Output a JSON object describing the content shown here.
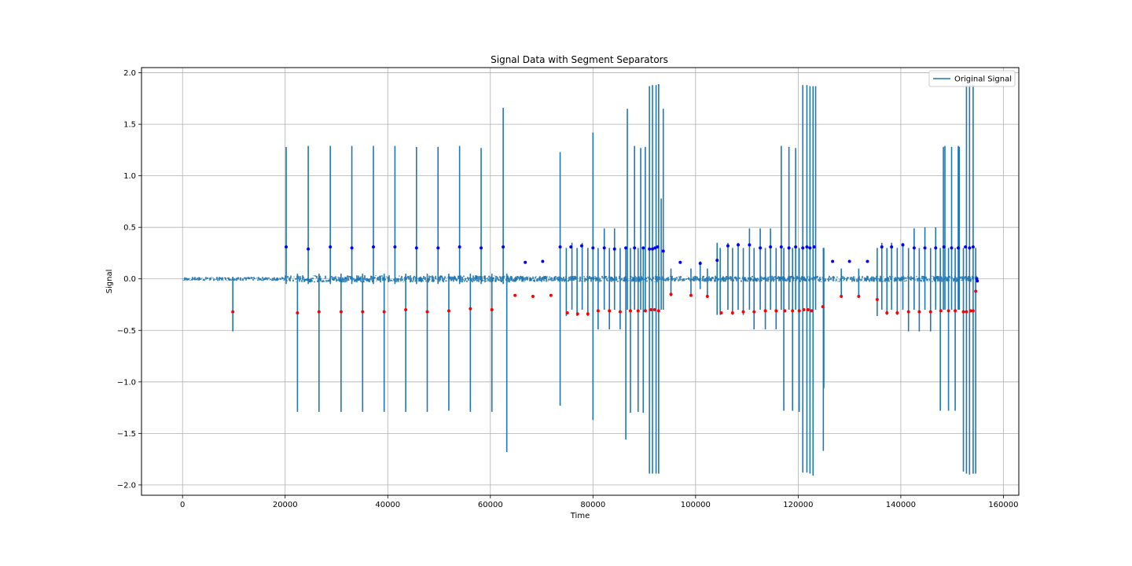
{
  "chart_data": {
    "type": "line",
    "title": "Signal Data with Segment Separators",
    "xlabel": "Time",
    "ylabel": "Signal",
    "xlim": [
      -8000,
      163000
    ],
    "ylim": [
      -2.1,
      2.05
    ],
    "xticks": [
      0,
      20000,
      40000,
      60000,
      80000,
      100000,
      120000,
      140000,
      160000
    ],
    "xtick_labels": [
      "0",
      "20000",
      "40000",
      "60000",
      "80000",
      "100000",
      "120000",
      "140000",
      "160000"
    ],
    "yticks": [
      -2.0,
      -1.5,
      -1.0,
      -0.5,
      0.0,
      0.5,
      1.0,
      1.5,
      2.0
    ],
    "ytick_labels": [
      "−2.0",
      "−1.5",
      "−1.0",
      "−0.5",
      "0.0",
      "0.5",
      "1.0",
      "1.5",
      "2.0"
    ],
    "grid": true,
    "legend_position": "top-right",
    "series": [
      {
        "name": "Original Signal",
        "color": "#1f77b4",
        "baseline": 0.0,
        "spikes": [
          [
            9800,
            0.02,
            -0.51
          ],
          [
            20200,
            1.28,
            -0.05
          ],
          [
            22400,
            0.05,
            -1.29
          ],
          [
            24500,
            1.29,
            -0.05
          ],
          [
            26600,
            0.05,
            -1.29
          ],
          [
            28800,
            1.29,
            -0.05
          ],
          [
            30900,
            0.05,
            -1.29
          ],
          [
            33000,
            1.29,
            -0.05
          ],
          [
            35100,
            0.05,
            -1.29
          ],
          [
            37200,
            1.29,
            -0.05
          ],
          [
            39300,
            0.05,
            -1.29
          ],
          [
            41400,
            1.29,
            -0.05
          ],
          [
            43500,
            0.05,
            -1.29
          ],
          [
            45600,
            1.28,
            -0.05
          ],
          [
            47700,
            0.05,
            -1.29
          ],
          [
            49800,
            1.28,
            -0.05
          ],
          [
            51900,
            0.05,
            -1.28
          ],
          [
            54000,
            1.29,
            -0.05
          ],
          [
            56100,
            0.05,
            -1.29
          ],
          [
            58200,
            1.27,
            -0.05
          ],
          [
            60300,
            0.05,
            -1.29
          ],
          [
            62500,
            1.66,
            -0.05
          ],
          [
            63200,
            0.05,
            -1.68
          ],
          [
            73600,
            1.23,
            -1.23
          ],
          [
            74800,
            0.3,
            -0.36
          ],
          [
            75900,
            0.35,
            -0.3
          ],
          [
            76900,
            0.3,
            -0.36
          ],
          [
            77900,
            0.35,
            -0.3
          ],
          [
            79000,
            0.3,
            -0.36
          ],
          [
            80000,
            1.42,
            -1.37
          ],
          [
            81000,
            0.3,
            -0.49
          ],
          [
            82200,
            0.49,
            -0.3
          ],
          [
            83200,
            0.3,
            -0.49
          ],
          [
            84200,
            0.49,
            -0.3
          ],
          [
            85300,
            0.3,
            -0.49
          ],
          [
            86400,
            0.3,
            -1.56
          ],
          [
            86700,
            1.65,
            -0.3
          ],
          [
            87300,
            0.3,
            -1.3
          ],
          [
            88100,
            1.29,
            -0.3
          ],
          [
            88800,
            0.3,
            -1.29
          ],
          [
            89300,
            1.27,
            -0.3
          ],
          [
            89800,
            0.3,
            -1.3
          ],
          [
            90200,
            1.28,
            -0.3
          ],
          [
            91000,
            1.87,
            -1.89
          ],
          [
            91600,
            1.88,
            -1.89
          ],
          [
            92300,
            1.88,
            -1.89
          ],
          [
            92800,
            1.89,
            -1.89
          ],
          [
            93300,
            0.78,
            -0.3
          ],
          [
            93700,
            1.65,
            -0.3
          ],
          [
            95200,
            0.1,
            -0.17
          ],
          [
            99100,
            0.1,
            -0.17
          ],
          [
            100900,
            0.17,
            -0.1
          ],
          [
            102300,
            0.1,
            -0.17
          ],
          [
            104200,
            0.35,
            -0.35
          ],
          [
            104800,
            0.3,
            -0.35
          ],
          [
            106300,
            0.35,
            -0.3
          ],
          [
            107200,
            0.3,
            -0.35
          ],
          [
            108300,
            0.35,
            -0.3
          ],
          [
            109300,
            0.3,
            -0.35
          ],
          [
            110500,
            0.49,
            -0.3
          ],
          [
            111400,
            0.3,
            -0.49
          ],
          [
            112600,
            0.49,
            -0.3
          ],
          [
            113600,
            0.3,
            -0.49
          ],
          [
            114600,
            0.49,
            -0.3
          ],
          [
            115700,
            0.3,
            -0.49
          ],
          [
            116700,
            1.29,
            -0.3
          ],
          [
            117200,
            0.3,
            -1.28
          ],
          [
            118200,
            1.28,
            -0.3
          ],
          [
            118900,
            0.3,
            -1.28
          ],
          [
            119500,
            1.27,
            -0.3
          ],
          [
            120200,
            0.3,
            -1.29
          ],
          [
            120900,
            1.88,
            -1.88
          ],
          [
            121700,
            1.88,
            -1.88
          ],
          [
            122300,
            1.87,
            -1.89
          ],
          [
            122900,
            1.87,
            -1.91
          ],
          [
            123400,
            1.87,
            -0.3
          ],
          [
            124900,
            0.3,
            -1.67
          ],
          [
            125000,
            0.3,
            -1.06
          ],
          [
            128400,
            0.1,
            -0.17
          ],
          [
            131800,
            0.1,
            -0.17
          ],
          [
            135400,
            0.3,
            -0.36
          ],
          [
            136300,
            0.35,
            -0.3
          ],
          [
            137300,
            0.3,
            -0.35
          ],
          [
            138200,
            0.35,
            -0.3
          ],
          [
            139300,
            0.3,
            -0.35
          ],
          [
            140400,
            0.35,
            -0.3
          ],
          [
            141500,
            0.3,
            -0.51
          ],
          [
            142600,
            0.49,
            -0.3
          ],
          [
            143600,
            0.3,
            -0.51
          ],
          [
            144700,
            0.5,
            -0.3
          ],
          [
            145800,
            0.3,
            -0.51
          ],
          [
            146800,
            0.5,
            -0.3
          ],
          [
            147700,
            0.3,
            -1.28
          ],
          [
            148300,
            1.28,
            -0.3
          ],
          [
            148600,
            1.29,
            -0.3
          ],
          [
            149300,
            0.3,
            -1.28
          ],
          [
            149900,
            1.28,
            -0.3
          ],
          [
            150600,
            0.3,
            -1.28
          ],
          [
            151200,
            1.29,
            -0.3
          ],
          [
            151400,
            1.28,
            -0.3
          ],
          [
            152200,
            0.3,
            -1.87
          ],
          [
            152800,
            1.88,
            -1.89
          ],
          [
            153400,
            1.88,
            -1.9
          ],
          [
            154100,
            1.88,
            -1.89
          ],
          [
            154600,
            0.3,
            -1.89
          ]
        ]
      },
      {
        "name": "",
        "color": "#0000ff",
        "marker": "dot",
        "points": [
          [
            20200,
            0.31
          ],
          [
            24500,
            0.29
          ],
          [
            28800,
            0.31
          ],
          [
            33000,
            0.3
          ],
          [
            37200,
            0.31
          ],
          [
            41400,
            0.31
          ],
          [
            45600,
            0.3
          ],
          [
            49800,
            0.3
          ],
          [
            54000,
            0.31
          ],
          [
            58200,
            0.3
          ],
          [
            62500,
            0.31
          ],
          [
            66800,
            0.16
          ],
          [
            70200,
            0.17
          ],
          [
            73600,
            0.31
          ],
          [
            75700,
            0.31
          ],
          [
            77800,
            0.32
          ],
          [
            80000,
            0.3
          ],
          [
            82200,
            0.3
          ],
          [
            84200,
            0.29
          ],
          [
            86400,
            0.3
          ],
          [
            88100,
            0.3
          ],
          [
            89800,
            0.3
          ],
          [
            91000,
            0.29
          ],
          [
            91600,
            0.29
          ],
          [
            92100,
            0.3
          ],
          [
            92600,
            0.31
          ],
          [
            93700,
            0.27
          ],
          [
            97000,
            0.16
          ],
          [
            100900,
            0.15
          ],
          [
            104200,
            0.18
          ],
          [
            106300,
            0.32
          ],
          [
            108300,
            0.33
          ],
          [
            110500,
            0.33
          ],
          [
            112600,
            0.3
          ],
          [
            114600,
            0.31
          ],
          [
            116700,
            0.31
          ],
          [
            118200,
            0.3
          ],
          [
            119500,
            0.31
          ],
          [
            120900,
            0.3
          ],
          [
            121700,
            0.31
          ],
          [
            122300,
            0.3
          ],
          [
            123100,
            0.31
          ],
          [
            126700,
            0.17
          ],
          [
            130000,
            0.17
          ],
          [
            133500,
            0.17
          ],
          [
            136300,
            0.31
          ],
          [
            138200,
            0.31
          ],
          [
            140400,
            0.33
          ],
          [
            142600,
            0.3
          ],
          [
            144700,
            0.3
          ],
          [
            146800,
            0.3
          ],
          [
            148400,
            0.31
          ],
          [
            149900,
            0.3
          ],
          [
            151200,
            0.3
          ],
          [
            152600,
            0.31
          ],
          [
            153400,
            0.3
          ],
          [
            154100,
            0.31
          ],
          [
            154800,
            0.0
          ],
          [
            154900,
            -0.02
          ]
        ]
      },
      {
        "name": "",
        "color": "#ff0000",
        "marker": "dot",
        "points": [
          [
            9800,
            -0.32
          ],
          [
            22400,
            -0.33
          ],
          [
            26600,
            -0.32
          ],
          [
            30900,
            -0.32
          ],
          [
            35100,
            -0.32
          ],
          [
            39300,
            -0.32
          ],
          [
            43500,
            -0.3
          ],
          [
            47700,
            -0.32
          ],
          [
            51900,
            -0.31
          ],
          [
            56100,
            -0.29
          ],
          [
            60300,
            -0.3
          ],
          [
            64800,
            -0.16
          ],
          [
            68300,
            -0.17
          ],
          [
            71800,
            -0.16
          ],
          [
            75000,
            -0.33
          ],
          [
            77000,
            -0.34
          ],
          [
            79000,
            -0.34
          ],
          [
            81000,
            -0.31
          ],
          [
            83200,
            -0.31
          ],
          [
            85300,
            -0.32
          ],
          [
            87300,
            -0.31
          ],
          [
            88800,
            -0.31
          ],
          [
            90200,
            -0.31
          ],
          [
            91300,
            -0.3
          ],
          [
            92000,
            -0.3
          ],
          [
            92800,
            -0.31
          ],
          [
            95200,
            -0.15
          ],
          [
            99100,
            -0.16
          ],
          [
            102300,
            -0.17
          ],
          [
            105000,
            -0.33
          ],
          [
            107200,
            -0.33
          ],
          [
            109300,
            -0.32
          ],
          [
            111400,
            -0.32
          ],
          [
            113600,
            -0.31
          ],
          [
            115700,
            -0.31
          ],
          [
            117400,
            -0.31
          ],
          [
            118900,
            -0.31
          ],
          [
            120200,
            -0.31
          ],
          [
            121100,
            -0.3
          ],
          [
            121900,
            -0.3
          ],
          [
            122600,
            -0.31
          ],
          [
            124800,
            -0.27
          ],
          [
            128400,
            -0.17
          ],
          [
            131800,
            -0.17
          ],
          [
            135400,
            -0.2
          ],
          [
            137300,
            -0.33
          ],
          [
            139300,
            -0.33
          ],
          [
            141500,
            -0.32
          ],
          [
            143600,
            -0.32
          ],
          [
            145800,
            -0.32
          ],
          [
            147800,
            -0.31
          ],
          [
            149300,
            -0.31
          ],
          [
            150600,
            -0.31
          ],
          [
            152200,
            -0.32
          ],
          [
            152800,
            -0.32
          ],
          [
            153600,
            -0.31
          ],
          [
            154100,
            -0.31
          ],
          [
            154600,
            -0.12
          ]
        ]
      }
    ]
  }
}
